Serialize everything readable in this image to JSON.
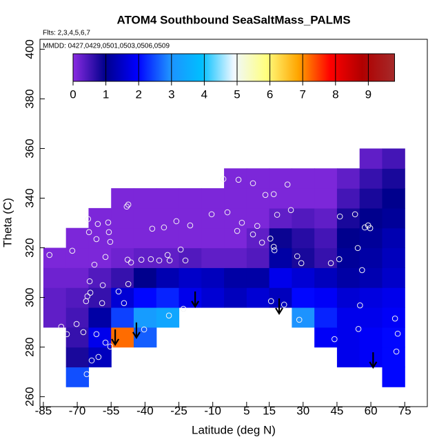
{
  "chart_data": {
    "type": "heatmap",
    "title": "ATOM4 Southbound SeaSaltMass_PALMS",
    "subtitle": "Flts: 2,3,4,5,6,7",
    "annotation": "MMDD: 0427,0429,0501,0503,0506,0509",
    "x_label": "Latitude (deg N)",
    "y_label": "Theta (C)",
    "xlim": [
      -86.5,
      85
    ],
    "ylim": [
      256,
      404
    ],
    "xticks": [
      -85,
      -70,
      -55,
      -40,
      -25,
      -10,
      5,
      15,
      30,
      45,
      60,
      75
    ],
    "yticks": [
      260,
      280,
      300,
      320,
      340,
      360,
      380,
      400
    ],
    "colorbar": {
      "zlim": [
        0,
        9.8
      ],
      "ticks": [
        0,
        1,
        2,
        3,
        4,
        5,
        6,
        7,
        8,
        9
      ],
      "colors": [
        "#8a2be2",
        "#00008b",
        "#0000ff",
        "#1e90ff",
        "#00bfff",
        "#f0f8ff",
        "#ffff80",
        "#ffa500",
        "#ff0000",
        "#b00000",
        "#a52a2a"
      ]
    },
    "field": {
      "x": [
        -80,
        -70,
        -60,
        -50,
        -40,
        -30,
        -20,
        -10,
        0,
        10,
        20,
        30,
        40,
        50,
        60,
        70
      ],
      "y": [
        268,
        276,
        284,
        292,
        300,
        308,
        316,
        324,
        332,
        340,
        348,
        356
      ],
      "z": [
        [
          null,
          2.5,
          null,
          null,
          null,
          null,
          null,
          null,
          null,
          null,
          null,
          null,
          null,
          null,
          null,
          2.0
        ],
        [
          null,
          0.8,
          1.4,
          null,
          null,
          null,
          null,
          null,
          null,
          null,
          null,
          null,
          null,
          1.8,
          1.9,
          2.0
        ],
        [
          null,
          0.6,
          1.8,
          7.2,
          2.6,
          null,
          null,
          null,
          null,
          null,
          null,
          null,
          1.9,
          1.8,
          1.9,
          2.0
        ],
        [
          0.3,
          0.5,
          1.2,
          2.4,
          3.2,
          3.4,
          null,
          null,
          null,
          null,
          null,
          3.0,
          2.2,
          1.8,
          1.8,
          1.9
        ],
        [
          0.3,
          0.4,
          0.6,
          1.6,
          2.0,
          2.2,
          1.8,
          1.6,
          1.4,
          1.6,
          1.4,
          2.0,
          1.9,
          1.6,
          1.7,
          1.8
        ],
        [
          0.2,
          0.2,
          0.4,
          0.6,
          1.0,
          1.3,
          1.5,
          1.4,
          1.2,
          1.2,
          1.8,
          1.6,
          1.4,
          1.2,
          1.3,
          1.5
        ],
        [
          0.1,
          0.1,
          0.1,
          0.2,
          0.3,
          0.3,
          0.4,
          0.3,
          0.3,
          0.4,
          1.2,
          0.8,
          0.6,
          1.1,
          1.2,
          1.4
        ],
        [
          null,
          0.1,
          0.1,
          0.1,
          0.1,
          0.1,
          0.1,
          0.1,
          0.1,
          0.3,
          0.9,
          0.7,
          0.5,
          1.0,
          1.1,
          1.3
        ],
        [
          null,
          null,
          0.1,
          0.1,
          0.1,
          0.1,
          0.1,
          0.1,
          0.1,
          0.1,
          0.3,
          0.4,
          0.3,
          0.8,
          1.0,
          1.1
        ],
        [
          null,
          null,
          null,
          0.1,
          0.1,
          0.1,
          0.1,
          0.1,
          0.1,
          0.1,
          0.1,
          0.1,
          0.1,
          0.5,
          0.8,
          1.0
        ],
        [
          null,
          null,
          null,
          null,
          null,
          null,
          null,
          null,
          0.1,
          0.1,
          0.1,
          0.1,
          0.1,
          0.3,
          0.6,
          0.8
        ],
        [
          null,
          null,
          null,
          null,
          null,
          null,
          null,
          null,
          null,
          null,
          null,
          null,
          null,
          null,
          0.3,
          0.5
        ]
      ]
    },
    "points": {
      "x": [
        -65.2,
        -60.9,
        -56.3,
        -48.1,
        -47.4,
        -56.0,
        -64.8,
        -61.5,
        -55.4,
        -72.2,
        -82.3,
        -57.5,
        -62.4,
        -47.7,
        -46.2,
        -41.6,
        -37.4,
        -33.7,
        -30.0,
        -29.1,
        -24.2,
        -22.1,
        -36.8,
        -31.6,
        -26.1,
        -20.0,
        -10.5,
        -3.5,
        0.8,
        2.9,
        7.8,
        9.7,
        -5.3,
        1.4,
        7.8,
        13.3,
        17.0,
        23.1,
        18.5,
        24.6,
        11.8,
        15.5,
        17.0,
        17.3,
        27.4,
        29.2,
        42.3,
        46.0,
        53.0,
        54.2,
        56.1,
        57.3,
        58.8,
        59.7,
        46.3,
        -64.5,
        -58.7,
        -64.2,
        -65.5,
        -66.1,
        -59.0,
        -49.3,
        -47.4,
        -51.7,
        -70.3,
        -77.1,
        -74.6,
        -67.3,
        -61.5,
        -57.5,
        -55.4,
        -63.6,
        -60.6,
        -40.4,
        -29.4,
        -23.0,
        28.3,
        43.9,
        55.2,
        54.5,
        70.7,
        71.9,
        71.3,
        -65.8,
        21.6,
        15.8
      ],
      "y": [
        331.6,
        329.6,
        330.2,
        336.6,
        337.4,
        326.3,
        326.3,
        323.5,
        322.4,
        318.8,
        317.1,
        316.3,
        313.2,
        315.2,
        314.1,
        315.2,
        315.4,
        314.9,
        317.1,
        314.9,
        319.3,
        314.9,
        327.7,
        328.2,
        330.7,
        329.0,
        333.5,
        334.3,
        326.8,
        330.1,
        325.4,
        328.8,
        347.7,
        347.4,
        346.0,
        341.3,
        341.6,
        345.5,
        333.3,
        335.2,
        322.1,
        323.7,
        320.4,
        319.0,
        316.6,
        313.8,
        313.8,
        315.4,
        333.5,
        319.9,
        311.0,
        328.2,
        329.0,
        327.9,
        332.6,
        306.5,
        304.9,
        301.9,
        300.5,
        298.5,
        297.7,
        297.7,
        305.4,
        302.4,
        289.3,
        288.2,
        285.2,
        286.0,
        285.2,
        281.8,
        280.2,
        274.6,
        276.0,
        287.1,
        292.7,
        295.4,
        291.0,
        283.2,
        296.8,
        287.3,
        291.5,
        285.4,
        278.2,
        269.1,
        297.1,
        298.5
      ]
    },
    "arrows": {
      "x": [
        -53.2,
        -43.8,
        -17.8,
        19.4,
        61.0
      ],
      "y": [
        281.0,
        283.8,
        296.3,
        293.5,
        271.8
      ]
    }
  }
}
